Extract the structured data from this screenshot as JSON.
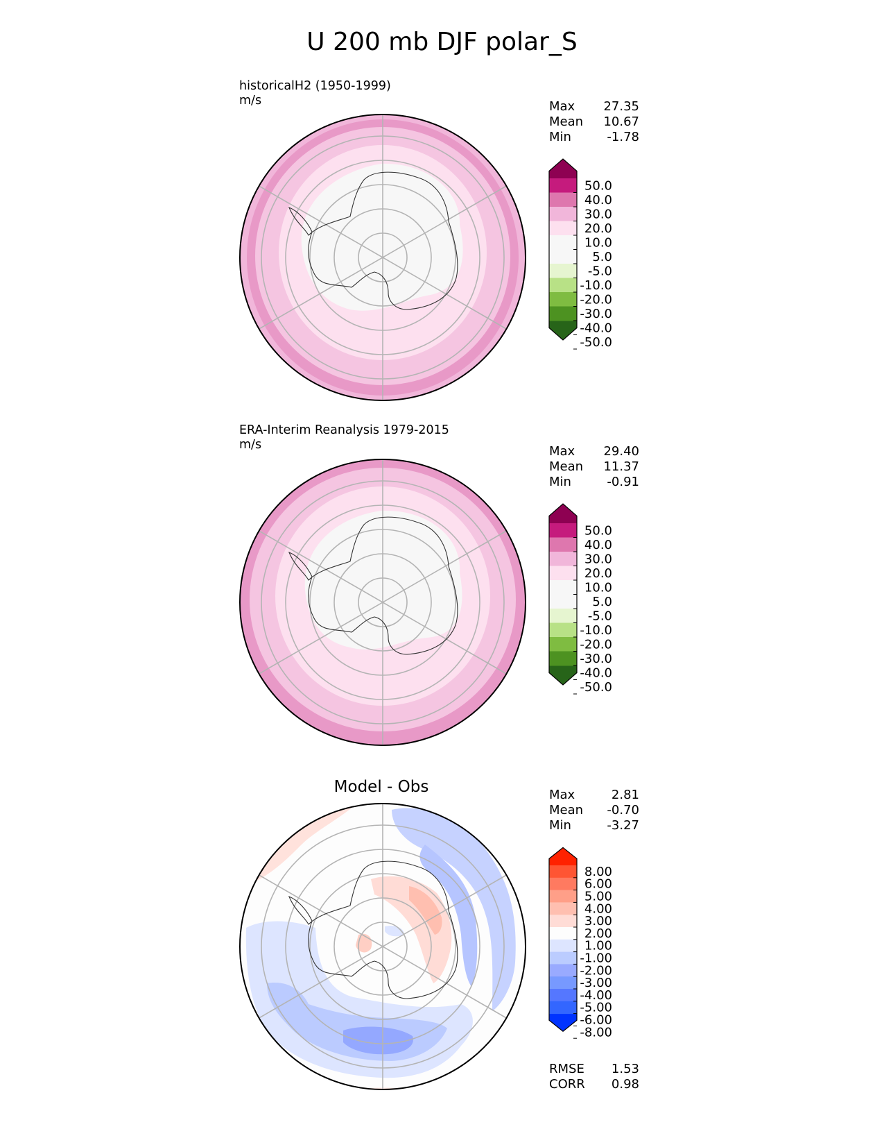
{
  "figure": {
    "title": "U 200 mb DJF polar_S"
  },
  "panels": [
    {
      "label_line1": "historicalH2 (1950-1999)",
      "label_line2": "m/s",
      "stats": {
        "max_label": "Max",
        "max": "27.35",
        "mean_label": "Mean",
        "mean": "10.67",
        "min_label": "Min",
        "min": "-1.78"
      },
      "colorbar": {
        "colors": [
          "#276419",
          "#4d9221",
          "#7fbc41",
          "#b8e186",
          "#e6f5d0",
          "#f7f7f7",
          "#f7f7f7",
          "#fde0ef",
          "#f1b6da",
          "#de77ae",
          "#c51b7d",
          "#8e0152"
        ],
        "ticks": [
          "-50.0",
          "-40.0",
          "-30.0",
          "-20.0",
          "-10.0",
          "-5.0",
          "5.0",
          "10.0",
          "20.0",
          "30.0",
          "40.0",
          "50.0"
        ]
      }
    },
    {
      "label_line1": "ERA-Interim Reanalysis 1979-2015",
      "label_line2": "m/s",
      "stats": {
        "max_label": "Max",
        "max": "29.40",
        "mean_label": "Mean",
        "mean": "11.37",
        "min_label": "Min",
        "min": "-0.91"
      },
      "colorbar": {
        "colors": [
          "#276419",
          "#4d9221",
          "#7fbc41",
          "#b8e186",
          "#e6f5d0",
          "#f7f7f7",
          "#f7f7f7",
          "#fde0ef",
          "#f1b6da",
          "#de77ae",
          "#c51b7d",
          "#8e0152"
        ],
        "ticks": [
          "-50.0",
          "-40.0",
          "-30.0",
          "-20.0",
          "-10.0",
          "-5.0",
          "5.0",
          "10.0",
          "20.0",
          "30.0",
          "40.0",
          "50.0"
        ]
      }
    },
    {
      "title": "Model - Obs",
      "stats": {
        "max_label": "Max",
        "max": "2.81",
        "mean_label": "Mean",
        "mean": "-0.70",
        "min_label": "Min",
        "min": "-3.27"
      },
      "metrics": {
        "rmse_label": "RMSE",
        "rmse": "1.53",
        "corr_label": "CORR",
        "corr": "0.98"
      },
      "colorbar": {
        "colors": [
          "#0033ff",
          "#3366ff",
          "#5577ff",
          "#7799ff",
          "#99aaff",
          "#bbccff",
          "#dde5ff",
          "#fdfdfd",
          "#ffdcd6",
          "#ffbfb0",
          "#ff9f88",
          "#ff7a60",
          "#ff5533",
          "#ff2200"
        ],
        "ticks": [
          "-8.00",
          "-6.00",
          "-5.00",
          "-4.00",
          "-3.00",
          "-2.00",
          "-1.00",
          "1.00",
          "2.00",
          "3.00",
          "4.00",
          "5.00",
          "6.00",
          "8.00"
        ]
      }
    }
  ]
}
